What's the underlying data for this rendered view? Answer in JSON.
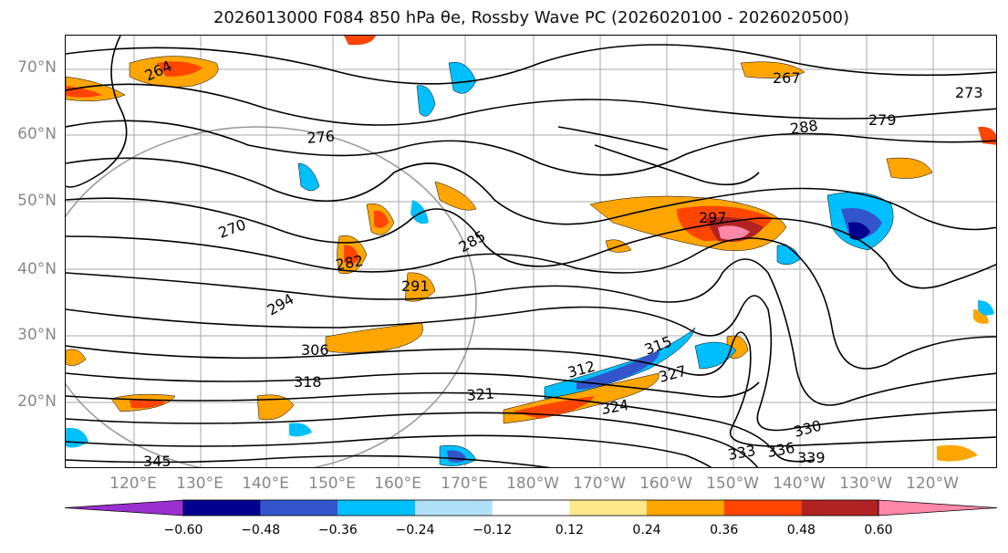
{
  "map": {
    "title": "2026013000 F084 850 hPa θe, Rossby Wave PC (2026020100 - 2026020500)",
    "lat_labels": [
      "70°N",
      "60°N",
      "50°N",
      "40°N",
      "30°N",
      "20°N"
    ],
    "lon_labels": [
      "120°E",
      "130°E",
      "140°E",
      "150°E",
      "160°E",
      "170°E",
      "180°W",
      "170°W",
      "160°W",
      "150°W",
      "140°W",
      "130°W",
      "120°W"
    ],
    "contour_labels": [
      "264",
      "270",
      "276",
      "282",
      "285",
      "288",
      "291",
      "294",
      "297",
      "306",
      "312",
      "315",
      "318",
      "321",
      "324",
      "327",
      "330",
      "333",
      "336",
      "339",
      "345",
      "267",
      "273",
      "279"
    ],
    "colorbar": {
      "ticks": [
        "−0.60",
        "−0.48",
        "−0.36",
        "−0.24",
        "−0.12",
        "0.12",
        "0.24",
        "0.36",
        "0.48",
        "0.60"
      ],
      "colors": [
        "#9b30d0",
        "#000090",
        "#3355cc",
        "#00bfff",
        "#b0e0f8",
        "#ffffff",
        "#ffe88a",
        "#ffa500",
        "#ff4500",
        "#b22222",
        "#ff88aa"
      ]
    }
  }
}
